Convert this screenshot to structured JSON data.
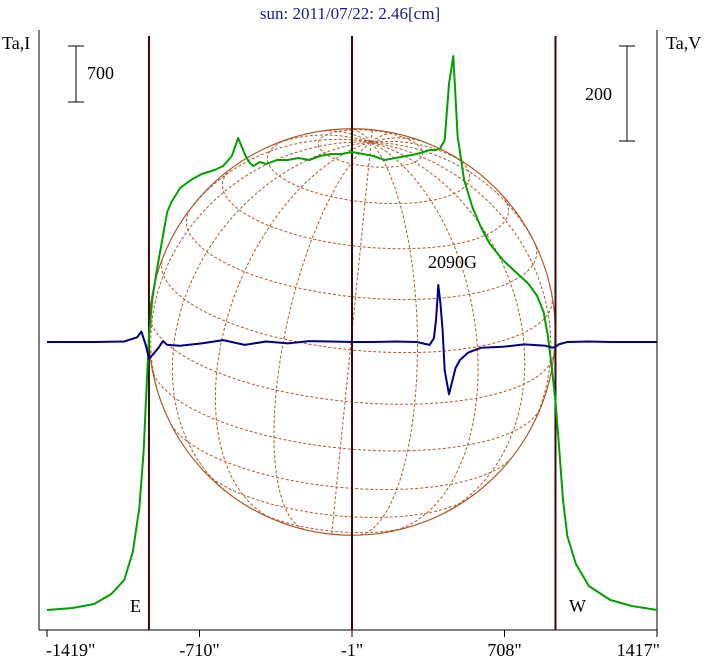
{
  "title": "sun: 2011/07/22: 2.46[cm]",
  "left_axis_label": "Ta,I",
  "right_axis_label": "Ta,V",
  "scale_left_label": "700",
  "scale_right_label": "200",
  "limb_east_label": "E",
  "limb_west_label": "W",
  "annotation_label": "2090G",
  "colors": {
    "title": "#1a1a8c",
    "stokes_i": "#00a000",
    "stokes_v": "#00007f",
    "grid": "#b05a2a",
    "cursor_lines": "#3a0a0a",
    "frame": "#000000"
  },
  "chart_data": {
    "type": "line",
    "title": "sun: 2011/07/22: 2.46[cm]",
    "xlabel": "",
    "x_ticks": [
      "-1419\"",
      "-710\"",
      "-1\"",
      "708\"",
      "1417\""
    ],
    "x_tick_values": [
      -1419,
      -710,
      -1,
      708,
      1417
    ],
    "xlim": [
      -1419,
      1417
    ],
    "vertical_markers": [
      -945,
      -1,
      945
    ],
    "solar_disk_radius": 945,
    "annotations": [
      {
        "text": "2090G",
        "x": 400
      }
    ],
    "scale_bars": [
      {
        "axis": "Ta,I",
        "length": 700
      },
      {
        "axis": "Ta,V",
        "length": 200
      }
    ],
    "series": [
      {
        "key": "I",
        "axis": "Ta,I",
        "x": [
          -1419,
          -1300,
          -1200,
          -1120,
          -1060,
          -1020,
          -990,
          -970,
          -955,
          -945,
          -930,
          -910,
          -880,
          -860,
          -840,
          -800,
          -750,
          -700,
          -640,
          -600,
          -560,
          -530,
          -500,
          -480,
          -460,
          -430,
          -400,
          -350,
          -300,
          -250,
          -200,
          -150,
          -100,
          -50,
          0,
          50,
          100,
          150,
          200,
          250,
          300,
          330,
          360,
          390,
          410,
          430,
          450,
          470,
          490,
          520,
          560,
          600,
          640,
          700,
          760,
          820,
          860,
          890,
          910,
          930,
          945,
          960,
          980,
          1000,
          1040,
          1100,
          1200,
          1300,
          1417
        ],
        "y": [
          10,
          20,
          40,
          90,
          160,
          300,
          520,
          800,
          1150,
          1380,
          1560,
          1700,
          1880,
          2000,
          2050,
          2120,
          2160,
          2190,
          2210,
          2230,
          2280,
          2370,
          2290,
          2250,
          2230,
          2250,
          2240,
          2260,
          2260,
          2270,
          2260,
          2280,
          2290,
          2290,
          2300,
          2290,
          2280,
          2260,
          2270,
          2280,
          2290,
          2300,
          2310,
          2310,
          2320,
          2360,
          2640,
          2780,
          2380,
          2160,
          2020,
          1920,
          1840,
          1760,
          1700,
          1640,
          1580,
          1500,
          1380,
          1200,
          1050,
          850,
          560,
          380,
          240,
          130,
          60,
          30,
          10
        ]
      },
      {
        "key": "V",
        "axis": "Ta,V",
        "x": [
          -1419,
          -1200,
          -1060,
          -1000,
          -980,
          -960,
          -945,
          -930,
          -900,
          -880,
          -860,
          -800,
          -700,
          -600,
          -500,
          -400,
          -300,
          -200,
          -100,
          0,
          100,
          200,
          300,
          360,
          380,
          390,
          400,
          410,
          420,
          430,
          450,
          480,
          500,
          540,
          600,
          700,
          800,
          900,
          930,
          945,
          960,
          1000,
          1100,
          1200,
          1300,
          1417
        ],
        "y": [
          0,
          0,
          1,
          10,
          22,
          -6,
          -35,
          -28,
          -12,
          2,
          -6,
          -8,
          -3,
          4,
          -6,
          1,
          -3,
          2,
          1,
          0,
          0,
          1,
          0,
          -6,
          8,
          48,
          120,
          82,
          25,
          -60,
          -110,
          -55,
          -38,
          -22,
          -12,
          -10,
          -5,
          -8,
          -12,
          -10,
          -5,
          0,
          1,
          0,
          0,
          0
        ]
      }
    ]
  }
}
